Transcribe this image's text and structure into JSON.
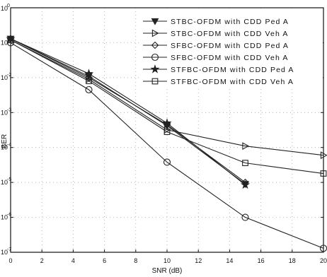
{
  "chart_data": {
    "type": "line",
    "title": "",
    "xlabel": "SNR (dB)",
    "ylabel": "BER",
    "xlim": [
      0,
      20
    ],
    "ylim": [
      1e-07,
      1
    ],
    "yscale": "log",
    "grid": true,
    "legend_position": "top-right",
    "x_ticks": [
      0,
      2,
      4,
      6,
      8,
      10,
      12,
      14,
      16,
      18,
      20
    ],
    "y_ticks": [
      {
        "base": "10",
        "exp": "0",
        "value": 1
      },
      {
        "base": "10",
        "exp": "-1",
        "value": 0.1
      },
      {
        "base": "10",
        "exp": "-2",
        "value": 0.01
      },
      {
        "base": "10",
        "exp": "-3",
        "value": 0.001
      },
      {
        "base": "10",
        "exp": "-4",
        "value": 0.0001
      },
      {
        "base": "10",
        "exp": "-5",
        "value": 1e-05
      },
      {
        "base": "10",
        "exp": "-6",
        "value": 1e-06
      },
      {
        "base": "10",
        "exp": "-7",
        "value": 1e-07
      }
    ],
    "x": [
      0,
      5,
      10,
      15,
      20
    ],
    "series": [
      {
        "name": "STBC-OFDM with CDD Ped A",
        "marker": "triangle-down",
        "filled": true,
        "x": [
          0,
          5,
          10,
          15
        ],
        "values": [
          0.13,
          0.011,
          0.00042,
          9e-06
        ]
      },
      {
        "name": "STBC-OFDM with CDD Veh A",
        "marker": "triangle-right",
        "filled": false,
        "x": [
          0,
          5,
          10,
          15,
          20
        ],
        "values": [
          0.12,
          0.009,
          0.00032,
          0.00011,
          6e-05
        ]
      },
      {
        "name": "SFBC-OFDM with CDD Ped A",
        "marker": "diamond",
        "filled": false,
        "x": [
          0,
          5,
          10,
          15
        ],
        "values": [
          0.13,
          0.01,
          0.00045,
          1e-05
        ]
      },
      {
        "name": "SFBC-OFDM with CDD Veh A",
        "marker": "circle",
        "filled": false,
        "x": [
          0,
          5,
          10,
          15,
          20
        ],
        "values": [
          0.1,
          0.0045,
          3.8e-05,
          1e-06,
          1.3e-07
        ]
      },
      {
        "name": "STFBC-OFDM with CDD Ped A",
        "marker": "star",
        "filled": true,
        "x": [
          0,
          5,
          10,
          15
        ],
        "values": [
          0.13,
          0.013,
          0.0005,
          8.5e-06
        ]
      },
      {
        "name": "STFBC-OFDM with CDD Veh A",
        "marker": "square",
        "filled": false,
        "x": [
          0,
          5,
          10,
          15,
          20
        ],
        "values": [
          0.12,
          0.008,
          0.00028,
          3.6e-05,
          1.8e-05
        ]
      }
    ]
  }
}
